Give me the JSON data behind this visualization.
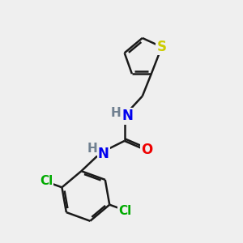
{
  "background_color": "#efefef",
  "atom_colors": {
    "C": "#1a1a1a",
    "H": "#708090",
    "N": "#0000ee",
    "O": "#ee0000",
    "S": "#cccc00",
    "Cl": "#00aa00"
  },
  "bond_color": "#1a1a1a",
  "bond_width": 1.8,
  "font_size_atoms": 11,
  "background_hex": "#efefef"
}
